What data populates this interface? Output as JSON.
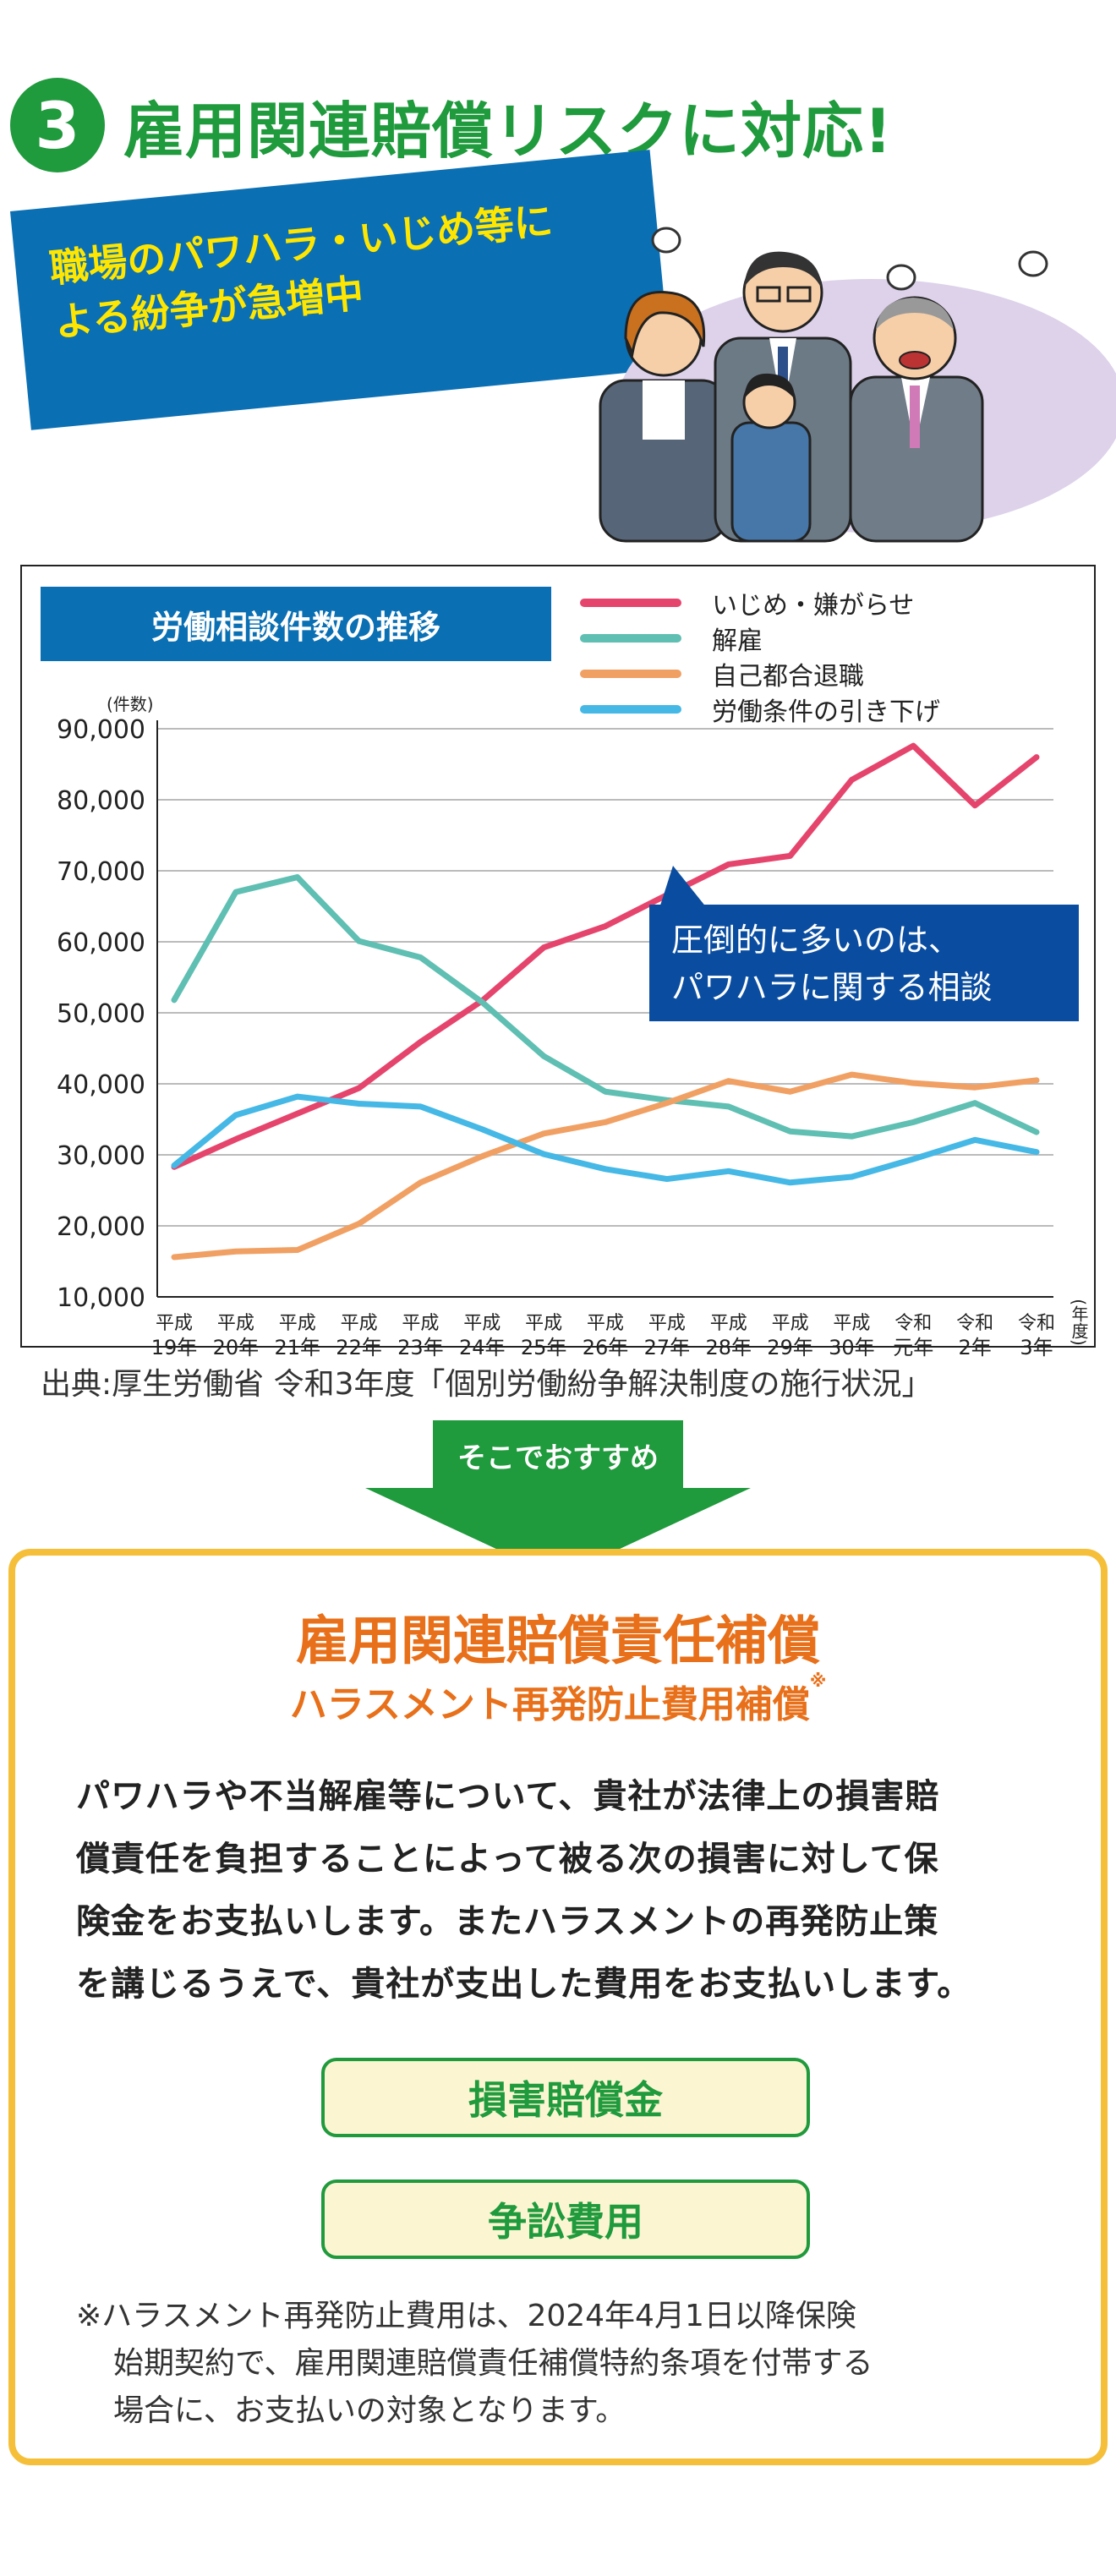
{
  "heading": {
    "number": "3",
    "text": "雇用関連賠償リスクに対応!"
  },
  "banner": {
    "lines": [
      "職場のパワハラ・いじめ等に",
      "よる紛争が急増中"
    ]
  },
  "illustration": {
    "icon": "angry-office-workers-illustration"
  },
  "chart_data": {
    "type": "line",
    "title": "労働相談件数の推移",
    "ylabel": "(件数)",
    "xlabel": "(年度)",
    "ylim": [
      10000,
      90000
    ],
    "yticks": [
      "90,000",
      "80,000",
      "70,000",
      "60,000",
      "50,000",
      "40,000",
      "30,000",
      "20,000",
      "10,000"
    ],
    "ytick_values": [
      90000,
      80000,
      70000,
      60000,
      50000,
      40000,
      30000,
      20000,
      10000
    ],
    "categories": [
      [
        "平成",
        "19年"
      ],
      [
        "平成",
        "20年"
      ],
      [
        "平成",
        "21年"
      ],
      [
        "平成",
        "22年"
      ],
      [
        "平成",
        "23年"
      ],
      [
        "平成",
        "24年"
      ],
      [
        "平成",
        "25年"
      ],
      [
        "平成",
        "26年"
      ],
      [
        "平成",
        "27年"
      ],
      [
        "平成",
        "28年"
      ],
      [
        "平成",
        "29年"
      ],
      [
        "平成",
        "30年"
      ],
      [
        "令和",
        "元年"
      ],
      [
        "令和",
        "2年"
      ],
      [
        "令和",
        "3年"
      ]
    ],
    "series": [
      {
        "name": "いじめ・嫌がらせ",
        "color": "#e5456c",
        "values": [
          28300,
          32200,
          35800,
          39400,
          45900,
          51700,
          59200,
          62200,
          66600,
          70900,
          72100,
          82800,
          87600,
          79200,
          86000
        ]
      },
      {
        "name": "解雇",
        "color": "#5fbfb2",
        "values": [
          51800,
          67000,
          69100,
          60100,
          57800,
          51500,
          43900,
          38900,
          37700,
          36800,
          33300,
          32600,
          34600,
          37300,
          33200
        ]
      },
      {
        "name": "自己都合退職",
        "color": "#f1a064",
        "values": [
          15600,
          16400,
          16600,
          20300,
          26100,
          29800,
          33000,
          34600,
          37300,
          40400,
          38900,
          41300,
          40100,
          39500,
          40500
        ]
      },
      {
        "name": "労働条件の引き下げ",
        "color": "#45b8e6",
        "values": [
          28500,
          35600,
          38200,
          37200,
          36800,
          33600,
          30100,
          28000,
          26600,
          27700,
          26100,
          26900,
          29400,
          32100,
          30400
        ]
      }
    ],
    "legend": "top-right",
    "grid": true,
    "annotation": [
      "圧倒的に多いのは、",
      "パワハラに関する相談"
    ]
  },
  "source": "出典:厚生労働省 令和3年度「個別労働紛争解決制度の施行状況」",
  "arrow": {
    "label": "そこでおすすめ"
  },
  "product": {
    "title": "雇用関連賠償責任補償",
    "subtitle": "ハラスメント再発防止費用補償",
    "subtitle_mark": "※",
    "body": [
      "パワハラや不当解雇等について、貴社が法律上の損害賠",
      "償責任を負担することによって被る次の損害に対して保",
      "険金をお支払いします。またハラスメントの再発防止策",
      "を講じるうえで、貴社が支出した費用をお支払いします。"
    ],
    "items": [
      "損害賠償金",
      "争訟費用"
    ],
    "note": [
      "※ハラスメント再発防止費用は、2024年4月1日以降保険",
      "始期契約で、雇用関連賠償責任補償特約条項を付帯する",
      "場合に、お支払いの対象となります。"
    ]
  }
}
